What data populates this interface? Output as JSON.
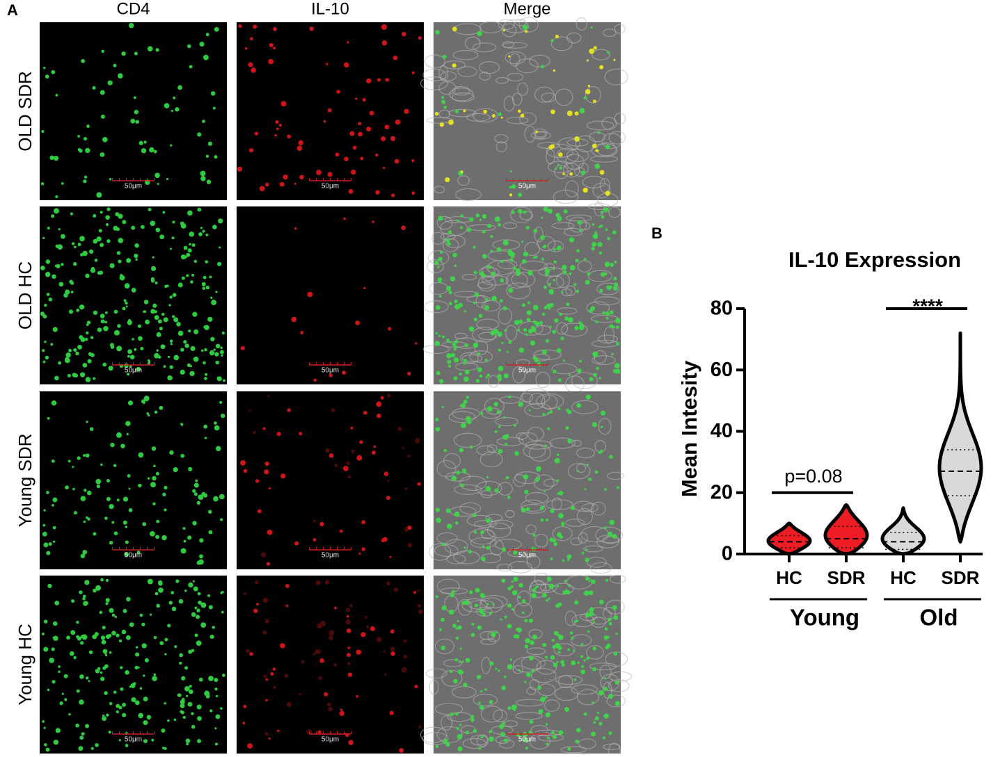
{
  "panel_a": {
    "label": "A",
    "columns": [
      "CD4",
      "IL-10",
      "Merge"
    ],
    "rows": [
      {
        "label": "OLD SDR",
        "scale_bars": [
          "50μm",
          "50μm",
          "50μm"
        ]
      },
      {
        "label": "OLD HC",
        "scale_bars": [
          "50μm",
          "50μm",
          "50μm"
        ]
      },
      {
        "label": "Young SDR",
        "scale_bars": [
          "50μm",
          "50μm",
          "50μm"
        ]
      },
      {
        "label": "Young HC",
        "scale_bars": [
          "50μm",
          "50μm",
          "50μm"
        ]
      }
    ]
  },
  "panel_b": {
    "label": "B"
  },
  "chart_data": {
    "type": "violin",
    "title": "IL-10 Expression",
    "y_label": "Mean Intesity",
    "categories": [
      "HC",
      "SDR",
      "HC",
      "SDR"
    ],
    "colors": [
      "#ee1c24",
      "#ee1c24",
      "#d9d9d9",
      "#d9d9d9"
    ],
    "stats": [
      {
        "min": 0,
        "q1": 2,
        "median": 4,
        "q3": 6,
        "max": 10
      },
      {
        "min": 0,
        "q1": 2,
        "median": 5,
        "q3": 9,
        "max": 16
      },
      {
        "min": 0,
        "q1": 1.5,
        "median": 4,
        "q3": 7,
        "max": 15
      },
      {
        "min": 4,
        "q1": 19,
        "median": 27,
        "q3": 34,
        "max": 72
      }
    ],
    "groups": [
      {
        "label": "Young",
        "annotation": "p=0.08",
        "annotation_y": 20
      },
      {
        "label": "Old",
        "annotation": "****",
        "annotation_y": 80
      }
    ],
    "ylim": [
      0,
      80
    ],
    "yticks": [
      0,
      20,
      40,
      60,
      80
    ]
  }
}
